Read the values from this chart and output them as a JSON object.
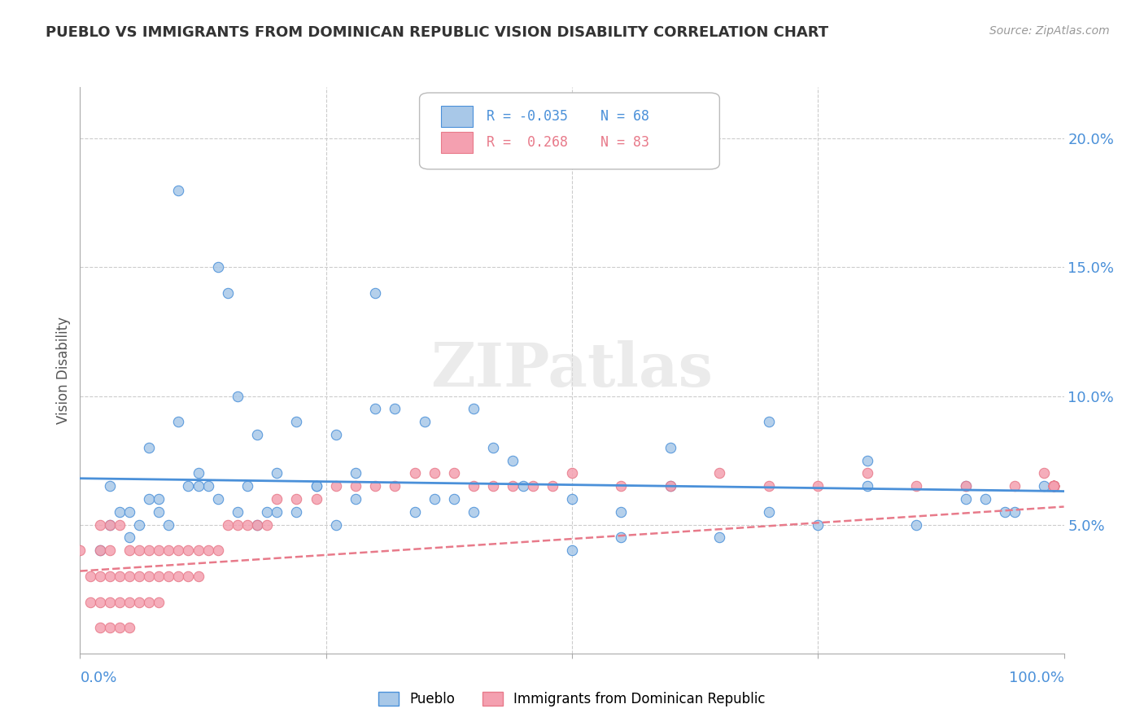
{
  "title": "PUEBLO VS IMMIGRANTS FROM DOMINICAN REPUBLIC VISION DISABILITY CORRELATION CHART",
  "source": "Source: ZipAtlas.com",
  "ylabel": "Vision Disability",
  "x_range": [
    0.0,
    1.0
  ],
  "y_range": [
    0.0,
    0.22
  ],
  "pueblo_color": "#a8c8e8",
  "immigrant_color": "#f4a0b0",
  "pueblo_line_color": "#4a90d9",
  "immigrant_line_color": "#e87a8a",
  "legend_pueblo_R": "-0.035",
  "legend_pueblo_N": "68",
  "legend_immigrant_R": "0.268",
  "legend_immigrant_N": "83",
  "pueblo_scatter_x": [
    0.02,
    0.03,
    0.04,
    0.05,
    0.06,
    0.07,
    0.08,
    0.09,
    0.1,
    0.11,
    0.12,
    0.13,
    0.14,
    0.15,
    0.16,
    0.17,
    0.18,
    0.19,
    0.2,
    0.22,
    0.24,
    0.26,
    0.28,
    0.3,
    0.35,
    0.4,
    0.45,
    0.5,
    0.55,
    0.6,
    0.65,
    0.7,
    0.75,
    0.8,
    0.85,
    0.9,
    0.95,
    0.98,
    0.03,
    0.05,
    0.07,
    0.08,
    0.1,
    0.12,
    0.14,
    0.16,
    0.18,
    0.2,
    0.22,
    0.24,
    0.26,
    0.28,
    0.3,
    0.32,
    0.34,
    0.36,
    0.38,
    0.4,
    0.42,
    0.44,
    0.5,
    0.55,
    0.6,
    0.7,
    0.8,
    0.9,
    0.92,
    0.94
  ],
  "pueblo_scatter_y": [
    0.04,
    0.05,
    0.055,
    0.045,
    0.05,
    0.06,
    0.055,
    0.05,
    0.09,
    0.065,
    0.07,
    0.065,
    0.15,
    0.14,
    0.1,
    0.065,
    0.085,
    0.055,
    0.07,
    0.09,
    0.065,
    0.085,
    0.07,
    0.14,
    0.09,
    0.095,
    0.065,
    0.04,
    0.055,
    0.08,
    0.045,
    0.055,
    0.05,
    0.065,
    0.05,
    0.06,
    0.055,
    0.065,
    0.065,
    0.055,
    0.08,
    0.06,
    0.18,
    0.065,
    0.06,
    0.055,
    0.05,
    0.055,
    0.055,
    0.065,
    0.05,
    0.06,
    0.095,
    0.095,
    0.055,
    0.06,
    0.06,
    0.055,
    0.08,
    0.075,
    0.06,
    0.045,
    0.065,
    0.09,
    0.075,
    0.065,
    0.06,
    0.055
  ],
  "immigrant_scatter_x": [
    0.0,
    0.01,
    0.01,
    0.02,
    0.02,
    0.02,
    0.02,
    0.02,
    0.03,
    0.03,
    0.03,
    0.03,
    0.03,
    0.04,
    0.04,
    0.04,
    0.04,
    0.05,
    0.05,
    0.05,
    0.05,
    0.06,
    0.06,
    0.06,
    0.07,
    0.07,
    0.07,
    0.08,
    0.08,
    0.08,
    0.09,
    0.09,
    0.1,
    0.1,
    0.11,
    0.11,
    0.12,
    0.12,
    0.13,
    0.14,
    0.15,
    0.16,
    0.17,
    0.18,
    0.19,
    0.2,
    0.22,
    0.24,
    0.26,
    0.28,
    0.3,
    0.32,
    0.34,
    0.36,
    0.38,
    0.4,
    0.42,
    0.44,
    0.46,
    0.48,
    0.5,
    0.55,
    0.6,
    0.65,
    0.7,
    0.75,
    0.8,
    0.85,
    0.9,
    0.95,
    0.98,
    0.99,
    0.99,
    0.99,
    0.99,
    0.99,
    0.99,
    0.99,
    0.99,
    0.99,
    0.99,
    0.99,
    0.99
  ],
  "immigrant_scatter_y": [
    0.04,
    0.02,
    0.03,
    0.01,
    0.02,
    0.03,
    0.04,
    0.05,
    0.01,
    0.02,
    0.03,
    0.04,
    0.05,
    0.01,
    0.02,
    0.03,
    0.05,
    0.01,
    0.02,
    0.03,
    0.04,
    0.02,
    0.03,
    0.04,
    0.02,
    0.03,
    0.04,
    0.02,
    0.03,
    0.04,
    0.03,
    0.04,
    0.03,
    0.04,
    0.03,
    0.04,
    0.03,
    0.04,
    0.04,
    0.04,
    0.05,
    0.05,
    0.05,
    0.05,
    0.05,
    0.06,
    0.06,
    0.06,
    0.065,
    0.065,
    0.065,
    0.065,
    0.07,
    0.07,
    0.07,
    0.065,
    0.065,
    0.065,
    0.065,
    0.065,
    0.07,
    0.065,
    0.065,
    0.07,
    0.065,
    0.065,
    0.07,
    0.065,
    0.065,
    0.065,
    0.07,
    0.065,
    0.065,
    0.065,
    0.065,
    0.065,
    0.065,
    0.065,
    0.065,
    0.065,
    0.065,
    0.065,
    0.065
  ],
  "pueblo_trend_x": [
    0.0,
    1.0
  ],
  "pueblo_trend_y": [
    0.068,
    0.063
  ],
  "immigrant_trend_x": [
    0.0,
    1.0
  ],
  "immigrant_trend_y": [
    0.032,
    0.057
  ]
}
